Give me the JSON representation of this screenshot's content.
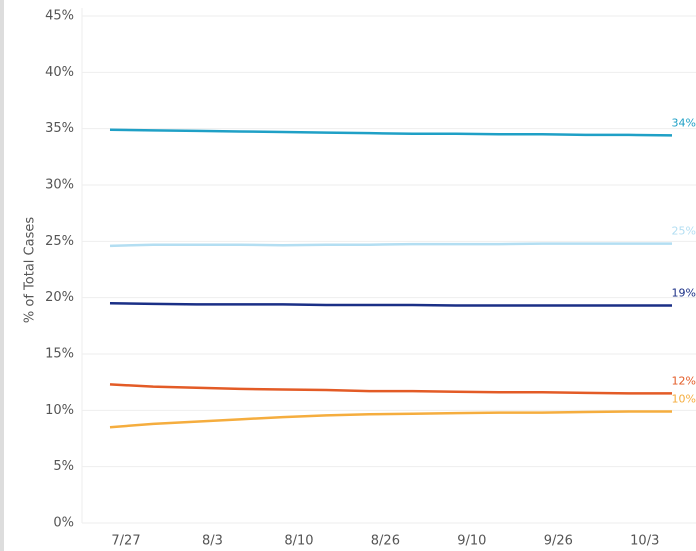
{
  "chart_data": {
    "type": "line",
    "ylabel": "% of Total Cases",
    "categories": [
      "7/27",
      null,
      "8/3",
      null,
      "8/10",
      null,
      "8/26",
      null,
      "9/10",
      null,
      "9/26",
      null,
      "10/3",
      null
    ],
    "ylim": [
      0,
      45
    ],
    "yticks": [
      {
        "value": 0,
        "label": "0%"
      },
      {
        "value": 5,
        "label": "5%"
      },
      {
        "value": 10,
        "label": "10%"
      },
      {
        "value": 15,
        "label": "15%"
      },
      {
        "value": 20,
        "label": "20%"
      },
      {
        "value": 25,
        "label": "25%"
      },
      {
        "value": 30,
        "label": "30%"
      },
      {
        "value": 35,
        "label": "35%"
      },
      {
        "value": 40,
        "label": "40%"
      },
      {
        "value": 45,
        "label": "45%"
      }
    ],
    "grid": true,
    "series": [
      {
        "color": "#1fa0c6",
        "values": [
          34.9,
          34.85,
          34.8,
          34.75,
          34.7,
          34.65,
          34.6,
          34.55,
          34.55,
          34.5,
          34.5,
          34.45,
          34.45,
          34.4
        ],
        "value_labels": [
          null,
          null,
          null,
          null,
          null,
          null,
          null,
          null,
          null,
          null,
          null,
          null,
          null,
          "34%"
        ]
      },
      {
        "color": "#b3def2",
        "values": [
          24.6,
          24.7,
          24.7,
          24.7,
          24.65,
          24.7,
          24.7,
          24.75,
          24.75,
          24.75,
          24.8,
          24.8,
          24.8,
          24.8
        ],
        "value_labels": [
          null,
          null,
          null,
          null,
          null,
          null,
          null,
          null,
          null,
          null,
          null,
          null,
          null,
          "25%"
        ]
      },
      {
        "color": "#1a2f86",
        "values": [
          19.5,
          19.45,
          19.4,
          19.4,
          19.4,
          19.35,
          19.35,
          19.35,
          19.3,
          19.3,
          19.3,
          19.3,
          19.3,
          19.3
        ],
        "value_labels": [
          null,
          null,
          null,
          null,
          null,
          null,
          null,
          null,
          null,
          null,
          null,
          null,
          null,
          "19%"
        ]
      },
      {
        "color": "#e35b26",
        "values": [
          12.3,
          12.1,
          12.0,
          11.9,
          11.85,
          11.8,
          11.7,
          11.7,
          11.65,
          11.6,
          11.6,
          11.55,
          11.5,
          11.5
        ],
        "value_labels": [
          null,
          null,
          null,
          null,
          null,
          null,
          null,
          null,
          null,
          null,
          null,
          null,
          null,
          "12%"
        ]
      },
      {
        "color": "#f5ad3e",
        "values": [
          8.5,
          8.8,
          9.0,
          9.2,
          9.4,
          9.55,
          9.65,
          9.7,
          9.75,
          9.8,
          9.8,
          9.85,
          9.9,
          9.9
        ],
        "value_labels": [
          null,
          null,
          null,
          null,
          null,
          null,
          null,
          null,
          null,
          null,
          null,
          null,
          null,
          "10%"
        ]
      }
    ]
  }
}
